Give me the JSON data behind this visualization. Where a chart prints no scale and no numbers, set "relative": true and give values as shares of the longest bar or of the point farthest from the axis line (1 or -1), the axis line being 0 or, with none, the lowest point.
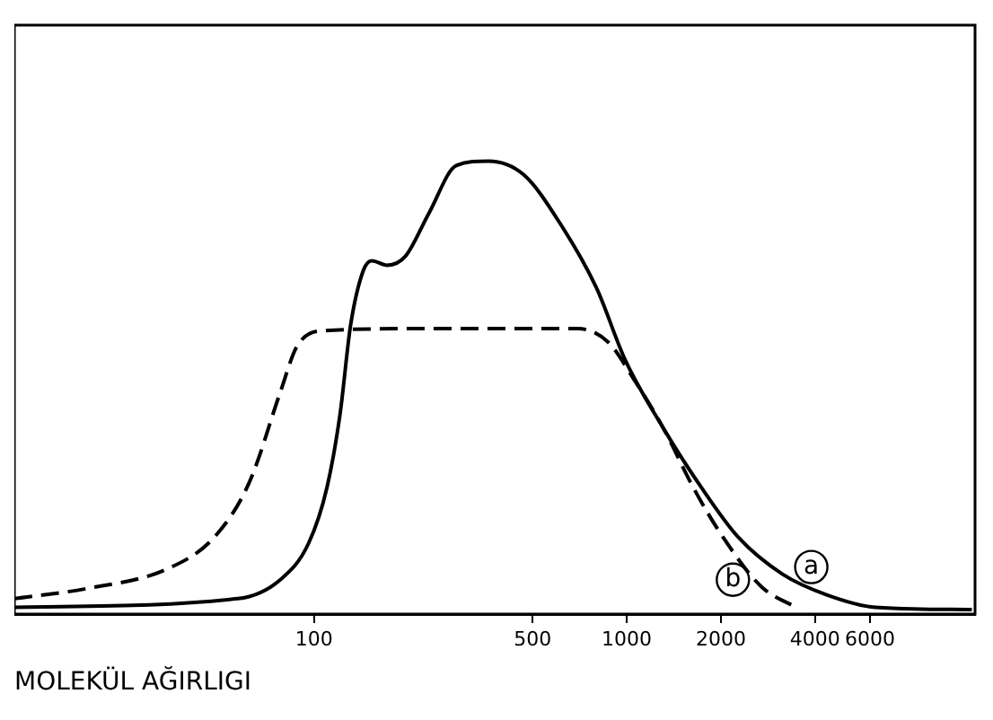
{
  "chart_data": {
    "type": "line",
    "xlabel": "MOLEKÜL AĞIRLIGI",
    "log": "x",
    "relative": true,
    "xlim": [
      11,
      13000
    ],
    "xticks": [
      100,
      500,
      1000,
      2000,
      4000,
      6000
    ],
    "grid": false,
    "legend": "bottom right",
    "marker": "none",
    "series": [
      {
        "name": "a",
        "color": "#000000",
        "line_style": "solid",
        "x": [
          11,
          57,
          78,
          96,
          110,
          121,
          131,
          144,
          153,
          171,
          196,
          233,
          285,
          361,
          468,
          615,
          800,
          990,
          1310,
          1730,
          2270,
          3150,
          4380,
          6240,
          12700
        ],
        "values": [
          0.015,
          0.034,
          0.076,
          0.156,
          0.28,
          0.44,
          0.64,
          0.76,
          0.78,
          0.77,
          0.79,
          0.885,
          0.99,
          1,
          0.97,
          0.86,
          0.72,
          0.56,
          0.41,
          0.28,
          0.17,
          0.088,
          0.042,
          0.015,
          0.01
        ]
      },
      {
        "name": "b",
        "color": "#000000",
        "line_style": "dashed",
        "x": [
          11,
          19,
          34,
          48,
          62,
          78,
          88,
          105,
          214,
          697,
          873,
          1050,
          1310,
          1630,
          2030,
          2700,
          3470
        ],
        "values": [
          0.034,
          0.057,
          0.1,
          0.17,
          0.29,
          0.49,
          0.59,
          0.625,
          0.63,
          0.63,
          0.6,
          0.52,
          0.41,
          0.28,
          0.17,
          0.06,
          0.015
        ]
      }
    ]
  }
}
